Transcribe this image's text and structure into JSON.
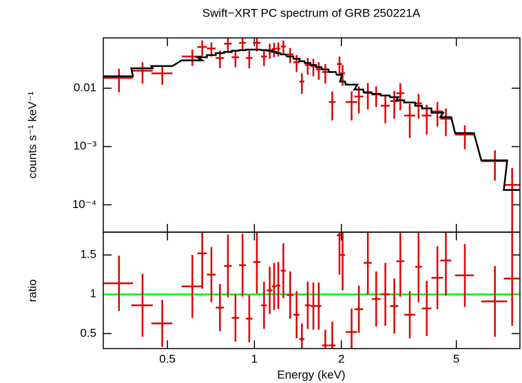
{
  "chart_data": [
    {
      "type": "errorbar",
      "title": "Swift−XRT PC spectrum of GRB 250221A",
      "ylabel": "counts s⁻¹ keV⁻¹",
      "log_x": true,
      "log_y": true,
      "ylim": [
        3.4e-05,
        0.073
      ],
      "yticks": [
        0.01,
        {
          "value": 0.001,
          "label": "10⁻³"
        },
        {
          "value": 0.0001,
          "label": "10⁻⁴"
        }
      ],
      "x": [
        0.34,
        0.41,
        0.48,
        0.61,
        0.66,
        0.71,
        0.76,
        0.81,
        0.86,
        0.91,
        0.96,
        1.02,
        1.08,
        1.13,
        1.17,
        1.21,
        1.26,
        1.33,
        1.4,
        1.46,
        1.53,
        1.6,
        1.67,
        1.76,
        1.86,
        1.97,
        2.02,
        2.17,
        2.3,
        2.47,
        2.64,
        2.84,
        3.05,
        3.2,
        3.45,
        3.7,
        3.95,
        4.3,
        4.6,
        5.35,
        6.8,
        7.8
      ],
      "x_errors": [
        0.04,
        0.035,
        0.04,
        0.05,
        0.025,
        0.025,
        0.025,
        0.025,
        0.025,
        0.025,
        0.025,
        0.03,
        0.025,
        0.025,
        0.02,
        0.02,
        0.025,
        0.035,
        0.035,
        0.03,
        0.035,
        0.035,
        0.035,
        0.045,
        0.05,
        0.04,
        0.04,
        0.1,
        0.08,
        0.08,
        0.09,
        0.1,
        0.1,
        0.1,
        0.15,
        0.1,
        0.15,
        0.2,
        0.2,
        0.4,
        0.7,
        0.5
      ],
      "series": [
        {
          "name": "data",
          "color": "#e00000",
          "values": [
            0.015,
            0.02,
            0.018,
            0.035,
            0.051,
            0.048,
            0.033,
            0.058,
            0.034,
            0.06,
            0.033,
            0.06,
            0.035,
            0.045,
            0.047,
            0.048,
            0.052,
            0.038,
            0.028,
            0.013,
            0.025,
            0.024,
            0.021,
            0.019,
            0.0058,
            0.026,
            0.018,
            0.0058,
            0.0072,
            0.0083,
            0.0078,
            0.005,
            0.006,
            0.0082,
            0.0034,
            0.0055,
            0.0034,
            0.004,
            0.003,
            0.0016,
            0.00056,
            0.00022
          ],
          "errors": [
            0.0065,
            0.008,
            0.0065,
            0.011,
            0.015,
            0.013,
            0.011,
            0.016,
            0.011,
            0.017,
            0.011,
            0.017,
            0.011,
            0.013,
            0.013,
            0.013,
            0.014,
            0.011,
            0.009,
            0.005,
            0.008,
            0.008,
            0.007,
            0.007,
            0.003,
            0.009,
            0.007,
            0.003,
            0.0035,
            0.004,
            0.003,
            0.0025,
            0.003,
            0.004,
            0.002,
            0.0025,
            0.0018,
            0.0018,
            0.0015,
            0.0007,
            0.0003,
            0.00021
          ]
        },
        {
          "name": "model",
          "color": "#000000",
          "values": [
            0.016,
            0.022,
            0.024,
            0.03,
            0.034,
            0.037,
            0.04,
            0.042,
            0.044,
            0.045,
            0.046,
            0.046,
            0.045,
            0.044,
            0.042,
            0.04,
            0.038,
            0.035,
            0.032,
            0.029,
            0.027,
            0.025,
            0.023,
            0.021,
            0.019,
            0.017,
            0.013,
            0.0115,
            0.0095,
            0.0085,
            0.008,
            0.0075,
            0.007,
            0.0062,
            0.0057,
            0.005,
            0.0045,
            0.0038,
            0.0032,
            0.0017,
            0.00058,
            0.00018
          ]
        }
      ]
    },
    {
      "type": "errorbar",
      "ylabel": "ratio",
      "xlabel": "Energy (keV)",
      "xlim": [
        0.3,
        8.3
      ],
      "xticks": [
        0.5,
        1,
        2,
        5
      ],
      "ylim": [
        0.31,
        1.79
      ],
      "yticks": [
        0.5,
        1,
        1.5
      ],
      "reference": 1,
      "reference_color": "#00ff00",
      "series": [
        {
          "name": "ratio",
          "color": "#e00000",
          "values": [
            1.14,
            0.86,
            0.63,
            1.1,
            1.52,
            1.25,
            0.83,
            1.36,
            0.7,
            1.37,
            0.69,
            1.41,
            0.86,
            1.05,
            1.1,
            1.11,
            1.3,
            0.99,
            0.74,
            0.43,
            0.86,
            0.85,
            0.85,
            0.35,
            0.35,
            1.75,
            1.5,
            0.52,
            0.81,
            1.4,
            0.94,
            1.0,
            0.85,
            1.42,
            0.74,
            1.35,
            0.82,
            1.21,
            1.43,
            1.24,
            0.91,
            1.2
          ],
          "errors": [
            0.35,
            0.4,
            0.3,
            0.4,
            0.45,
            0.35,
            0.3,
            0.4,
            0.3,
            0.4,
            0.3,
            0.4,
            0.3,
            0.3,
            0.3,
            0.3,
            0.35,
            0.3,
            0.3,
            0.2,
            0.3,
            0.3,
            0.3,
            0.2,
            0.3,
            0.5,
            0.45,
            0.3,
            0.3,
            0.4,
            0.35,
            0.4,
            0.35,
            0.45,
            0.3,
            0.45,
            0.35,
            0.4,
            0.45,
            0.4,
            0.45,
            0.6
          ]
        }
      ]
    }
  ]
}
